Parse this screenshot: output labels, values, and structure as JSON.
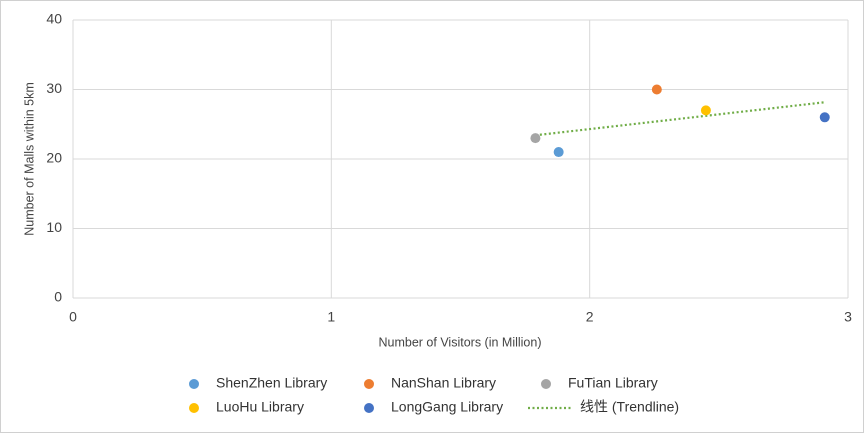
{
  "chart_data": {
    "type": "scatter",
    "x_label": "Number of Visitors (in Million)",
    "y_label": "Number of Malls within 5km",
    "xlim": [
      0,
      3
    ],
    "xticks": [
      0,
      1,
      2,
      3
    ],
    "ylim": [
      0,
      40
    ],
    "yticks": [
      0,
      10,
      20,
      30,
      40
    ],
    "grid": true,
    "legend": "bottom",
    "series": [
      {
        "name": "ShenZhen Library",
        "color": "#5b9bd5",
        "x": [
          1.88
        ],
        "values": [
          21
        ]
      },
      {
        "name": "NanShan Library",
        "color": "#ed7d31",
        "x": [
          2.26
        ],
        "values": [
          30
        ]
      },
      {
        "name": "FuTian Library",
        "color": "#a5a5a5",
        "x": [
          1.79
        ],
        "values": [
          23
        ]
      },
      {
        "name": "LuoHu Library",
        "color": "#ffc000",
        "x": [
          2.45
        ],
        "values": [
          27
        ]
      },
      {
        "name": "LongGang Library",
        "color": "#4472c4",
        "x": [
          2.91
        ],
        "values": [
          26
        ]
      }
    ],
    "trendline": {
      "name": "线性 (Trendline)",
      "color": "#70ad47"
    }
  }
}
